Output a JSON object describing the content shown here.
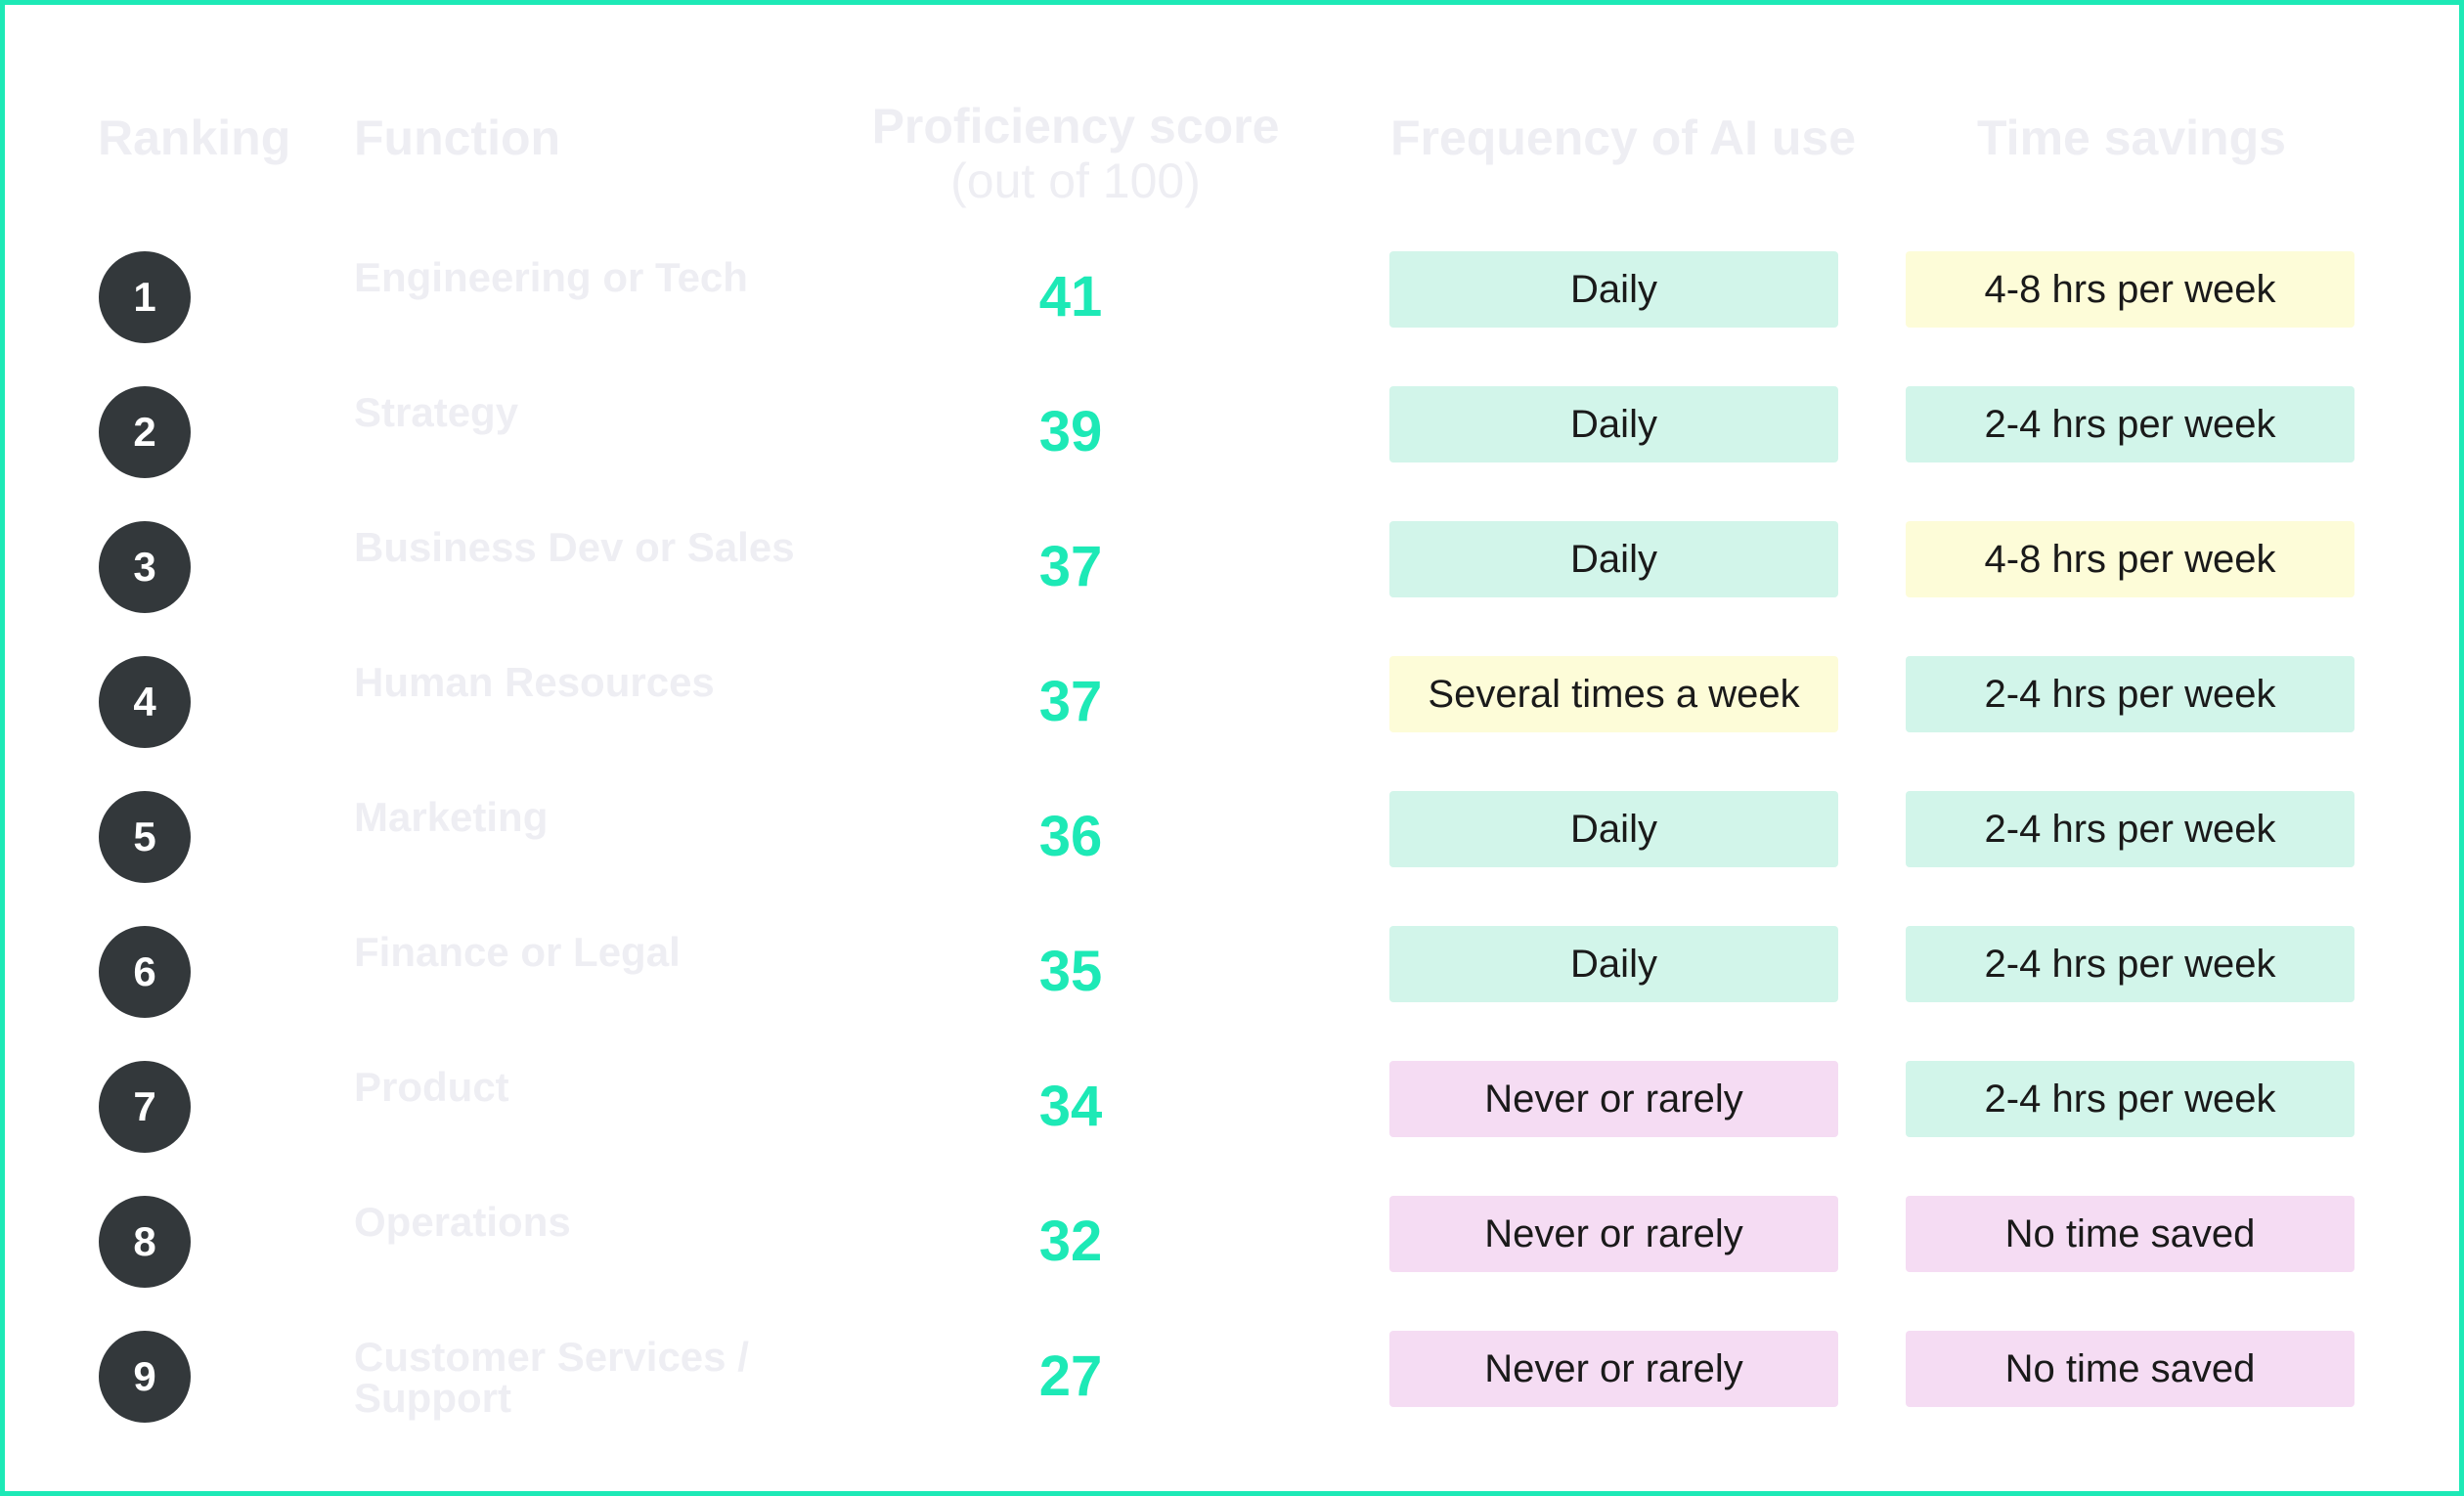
{
  "header": {
    "ranking": "Ranking",
    "function": "Function",
    "proficiency": "Proficiency score",
    "proficiency_sub": "(out of 100)",
    "frequency": "Frequency of AI use",
    "time_savings": "Time savings"
  },
  "colors": {
    "accent": "#1de9b6",
    "badge": "#33383b",
    "green_pill": "#d2f5ea",
    "yellow_pill": "#fdfcd8",
    "pink_pill": "#f5dcf3"
  },
  "rows": [
    {
      "rank": "1",
      "function": "Engineering or Tech",
      "score": "41",
      "frequency": "Daily",
      "frequency_color": "green",
      "time": "4-8 hrs per week",
      "time_color": "yellow"
    },
    {
      "rank": "2",
      "function": "Strategy",
      "score": "39",
      "frequency": "Daily",
      "frequency_color": "green",
      "time": "2-4 hrs per week",
      "time_color": "green"
    },
    {
      "rank": "3",
      "function": "Business Dev or Sales",
      "score": "37",
      "frequency": "Daily",
      "frequency_color": "green",
      "time": "4-8 hrs per week",
      "time_color": "yellow"
    },
    {
      "rank": "4",
      "function": "Human Resources",
      "score": "37",
      "frequency": "Several times a week",
      "frequency_color": "yellow",
      "time": "2-4 hrs per week",
      "time_color": "green"
    },
    {
      "rank": "5",
      "function": "Marketing",
      "score": "36",
      "frequency": "Daily",
      "frequency_color": "green",
      "time": "2-4 hrs per week",
      "time_color": "green"
    },
    {
      "rank": "6",
      "function": "Finance or Legal",
      "score": "35",
      "frequency": "Daily",
      "frequency_color": "green",
      "time": "2-4 hrs per week",
      "time_color": "green"
    },
    {
      "rank": "7",
      "function": "Product",
      "score": "34",
      "frequency": "Never or rarely",
      "frequency_color": "pink",
      "time": "2-4 hrs per week",
      "time_color": "green"
    },
    {
      "rank": "8",
      "function": "Operations",
      "score": "32",
      "frequency": "Never or rarely",
      "frequency_color": "pink",
      "time": "No time saved",
      "time_color": "pink"
    },
    {
      "rank": "9",
      "function": "Customer Services / Support",
      "score": "27",
      "frequency": "Never or rarely",
      "frequency_color": "pink",
      "time": "No time saved",
      "time_color": "pink"
    }
  ]
}
